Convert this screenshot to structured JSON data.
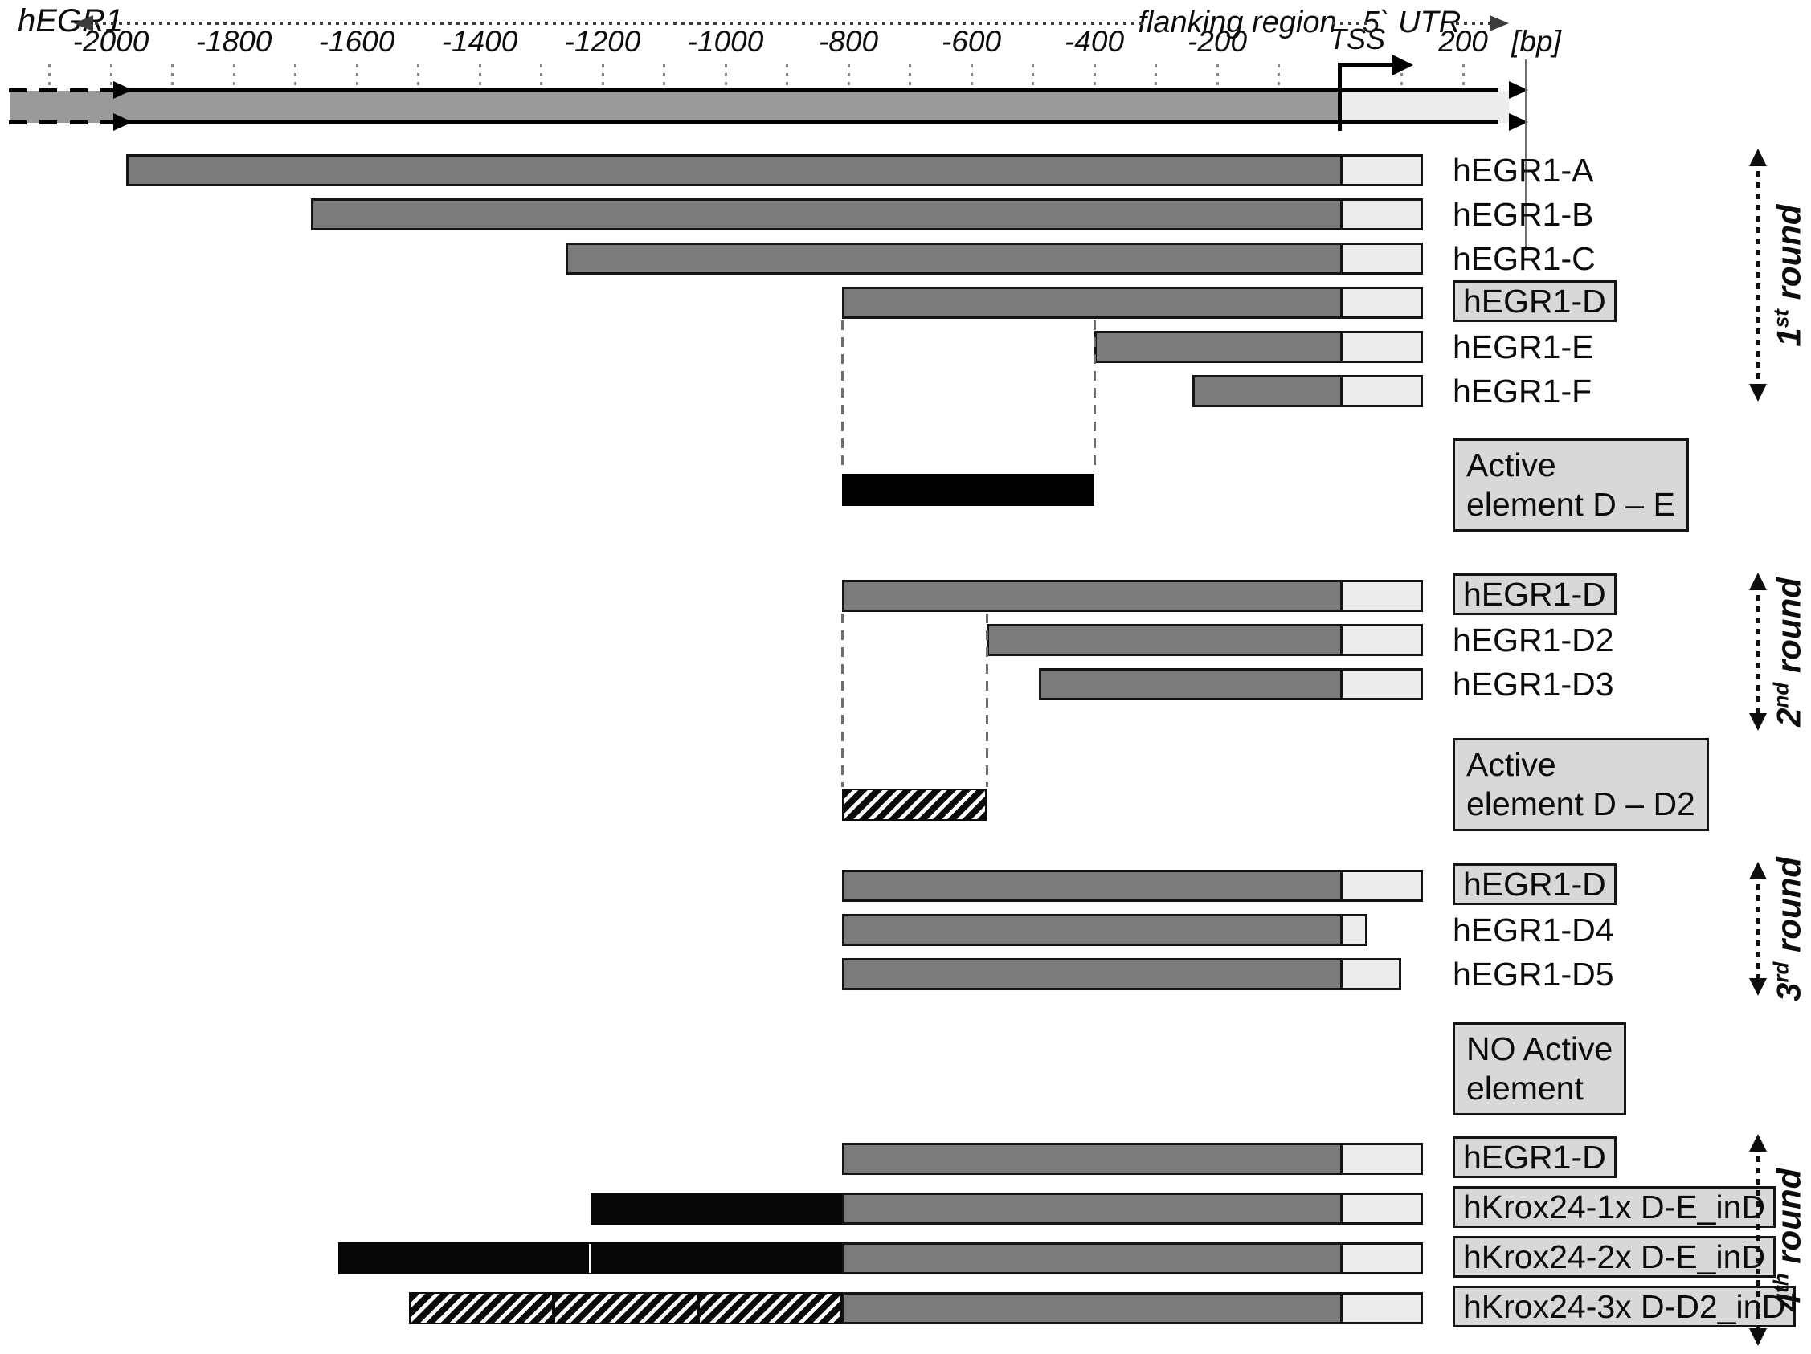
{
  "header": {
    "gene_label": "hEGR1",
    "flanking_region_label": "flanking region",
    "utr_label": "5` UTR",
    "tss_label": "TSS",
    "unit_label": "[bp]"
  },
  "axis": {
    "tick_label_values_bp": [
      -2000,
      -1800,
      -1600,
      -1400,
      -1200,
      -1000,
      -800,
      -600,
      -400,
      -200,
      200
    ],
    "minor_tick_start_bp": -2100,
    "minor_tick_end_bp": 200,
    "minor_tick_step_bp": 100,
    "tss_bp": 0
  },
  "genome_bar": {
    "upstream_from_bp": -2165,
    "tss_bp": 0,
    "utr_to_bp": 274
  },
  "groups": [
    {
      "round": {
        "ordinal": "1",
        "suffix": "st",
        "word": "round"
      },
      "rows": [
        {
          "label": "hEGR1-A",
          "boxed": false,
          "bar": {
            "from_bp": -1975,
            "utr_from_bp": 0,
            "to_bp": 135
          }
        },
        {
          "label": "hEGR1-B",
          "boxed": false,
          "bar": {
            "from_bp": -1675,
            "utr_from_bp": 0,
            "to_bp": 135
          }
        },
        {
          "label": "hEGR1-C",
          "boxed": false,
          "bar": {
            "from_bp": -1260,
            "utr_from_bp": 0,
            "to_bp": 135
          }
        },
        {
          "label": "hEGR1-D",
          "boxed": true,
          "bar": {
            "from_bp": -810,
            "utr_from_bp": 0,
            "to_bp": 135
          }
        },
        {
          "label": "hEGR1-E",
          "boxed": false,
          "bar": {
            "from_bp": -400,
            "utr_from_bp": 0,
            "to_bp": 135
          }
        },
        {
          "label": "hEGR1-F",
          "boxed": false,
          "bar": {
            "from_bp": -240,
            "utr_from_bp": 0,
            "to_bp": 135
          }
        }
      ],
      "guides_bp": [
        -810,
        -400
      ],
      "element_bar": {
        "style": "black",
        "from_bp": -810,
        "to_bp": -400
      },
      "note": {
        "lines": [
          "Active",
          "element D – E"
        ]
      }
    },
    {
      "round": {
        "ordinal": "2",
        "suffix": "nd",
        "word": "round"
      },
      "rows": [
        {
          "label": "hEGR1-D",
          "boxed": true,
          "bar": {
            "from_bp": -810,
            "utr_from_bp": 0,
            "to_bp": 135
          }
        },
        {
          "label": "hEGR1-D2",
          "boxed": false,
          "bar": {
            "from_bp": -575,
            "utr_from_bp": 0,
            "to_bp": 135
          }
        },
        {
          "label": "hEGR1-D3",
          "boxed": false,
          "bar": {
            "from_bp": -490,
            "utr_from_bp": 0,
            "to_bp": 135
          }
        }
      ],
      "guides_bp": [
        -810,
        -575
      ],
      "element_bar": {
        "style": "hatched",
        "from_bp": -810,
        "to_bp": -575
      },
      "note": {
        "lines": [
          "Active",
          "element D – D2"
        ]
      }
    },
    {
      "round": {
        "ordinal": "3",
        "suffix": "rd",
        "word": "round"
      },
      "rows": [
        {
          "label": "hEGR1-D",
          "boxed": true,
          "bar": {
            "from_bp": -810,
            "utr_from_bp": 0,
            "to_bp": 135
          }
        },
        {
          "label": "hEGR1-D4",
          "boxed": false,
          "bar": {
            "from_bp": -810,
            "utr_from_bp": 0,
            "to_bp": 45
          }
        },
        {
          "label": "hEGR1-D5",
          "boxed": false,
          "bar": {
            "from_bp": -810,
            "utr_from_bp": 0,
            "to_bp": 100
          }
        }
      ],
      "guides_bp": [],
      "element_bar": null,
      "note": {
        "lines": [
          "NO Active",
          "element"
        ]
      }
    },
    {
      "round": {
        "ordinal": "4",
        "suffix": "th",
        "word": "round"
      },
      "rows": [
        {
          "label": "hEGR1-D",
          "boxed": true,
          "bar": {
            "from_bp": -810,
            "utr_from_bp": 0,
            "to_bp": 135
          }
        },
        {
          "label": "hKrox24-1x D-E_inD",
          "boxed": true,
          "bar": {
            "from_bp": -810,
            "utr_from_bp": 0,
            "to_bp": 135
          },
          "segments": [
            {
              "style": "black",
              "from_bp": -1220,
              "to_bp": -810
            }
          ]
        },
        {
          "label": "hKrox24-2x D-E_inD",
          "boxed": true,
          "bar": {
            "from_bp": -810,
            "utr_from_bp": 0,
            "to_bp": 135
          },
          "segments": [
            {
              "style": "black",
              "from_bp": -1630,
              "to_bp": -1220
            },
            {
              "style": "black",
              "from_bp": -1220,
              "to_bp": -810
            }
          ]
        },
        {
          "label": "hKrox24-3x D-D2_inD",
          "boxed": true,
          "bar": {
            "from_bp": -810,
            "utr_from_bp": 0,
            "to_bp": 135
          },
          "segments": [
            {
              "style": "hatched",
              "from_bp": -1515,
              "to_bp": -1280
            },
            {
              "style": "hatched",
              "from_bp": -1280,
              "to_bp": -1045
            },
            {
              "style": "hatched",
              "from_bp": -1045,
              "to_bp": -810
            }
          ]
        }
      ],
      "guides_bp": [],
      "element_bar": null,
      "note": null
    }
  ],
  "colors": {
    "promoter_fill": "#7b7b7b",
    "genome_fill": "#9a9a9a",
    "utr_fill": "#ececec",
    "note_box_fill": "#d8d8d8",
    "element_black": "#000000",
    "outline": "#141414"
  }
}
